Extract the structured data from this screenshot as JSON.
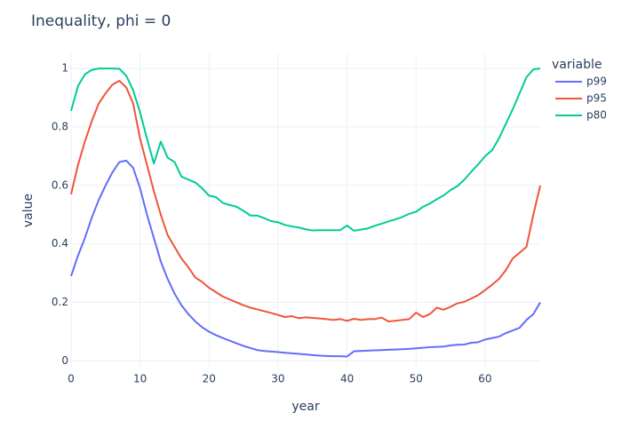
{
  "chart_data": {
    "type": "line",
    "title": "Inequality, phi = 0",
    "x_label": "year",
    "y_label": "value",
    "legend_title": "variable",
    "x": [
      0,
      1,
      2,
      3,
      4,
      5,
      6,
      7,
      8,
      9,
      10,
      11,
      12,
      13,
      14,
      15,
      16,
      17,
      18,
      19,
      20,
      21,
      22,
      23,
      24,
      25,
      26,
      27,
      28,
      29,
      30,
      31,
      32,
      33,
      34,
      35,
      36,
      37,
      38,
      39,
      40,
      41,
      42,
      43,
      44,
      45,
      46,
      47,
      48,
      49,
      50,
      51,
      52,
      53,
      54,
      55,
      56,
      57,
      58,
      59,
      60,
      61,
      62,
      63,
      64,
      65,
      66,
      67,
      68
    ],
    "series": [
      {
        "name": "p99",
        "color": "#636efa",
        "values": [
          0.29,
          0.36,
          0.42,
          0.49,
          0.55,
          0.6,
          0.645,
          0.68,
          0.685,
          0.66,
          0.59,
          0.5,
          0.42,
          0.34,
          0.28,
          0.23,
          0.19,
          0.16,
          0.135,
          0.115,
          0.1,
          0.088,
          0.078,
          0.069,
          0.06,
          0.051,
          0.044,
          0.037,
          0.034,
          0.032,
          0.03,
          0.028,
          0.026,
          0.024,
          0.022,
          0.02,
          0.018,
          0.017,
          0.016,
          0.016,
          0.015,
          0.033,
          0.034,
          0.035,
          0.036,
          0.037,
          0.038,
          0.039,
          0.04,
          0.041,
          0.043,
          0.045,
          0.047,
          0.048,
          0.049,
          0.053,
          0.055,
          0.056,
          0.062,
          0.064,
          0.073,
          0.078,
          0.083,
          0.095,
          0.104,
          0.113,
          0.14,
          0.16,
          0.2
        ]
      },
      {
        "name": "p95",
        "color": "#EF553B",
        "values": [
          0.57,
          0.67,
          0.75,
          0.82,
          0.88,
          0.915,
          0.945,
          0.958,
          0.935,
          0.88,
          0.76,
          0.67,
          0.58,
          0.5,
          0.43,
          0.39,
          0.35,
          0.32,
          0.285,
          0.27,
          0.25,
          0.235,
          0.22,
          0.21,
          0.2,
          0.19,
          0.182,
          0.176,
          0.17,
          0.164,
          0.157,
          0.15,
          0.153,
          0.146,
          0.149,
          0.147,
          0.145,
          0.143,
          0.14,
          0.143,
          0.137,
          0.144,
          0.14,
          0.143,
          0.143,
          0.148,
          0.135,
          0.137,
          0.14,
          0.143,
          0.165,
          0.15,
          0.16,
          0.182,
          0.175,
          0.185,
          0.197,
          0.202,
          0.213,
          0.225,
          0.242,
          0.26,
          0.28,
          0.31,
          0.35,
          0.37,
          0.39,
          0.5,
          0.6
        ]
      },
      {
        "name": "p80",
        "color": "#00cc96",
        "values": [
          0.855,
          0.94,
          0.98,
          0.995,
          1,
          1,
          1,
          0.999,
          0.975,
          0.925,
          0.85,
          0.76,
          0.675,
          0.75,
          0.695,
          0.68,
          0.63,
          0.62,
          0.61,
          0.59,
          0.565,
          0.56,
          0.54,
          0.533,
          0.527,
          0.513,
          0.497,
          0.497,
          0.488,
          0.478,
          0.474,
          0.465,
          0.46,
          0.456,
          0.45,
          0.446,
          0.447,
          0.447,
          0.447,
          0.447,
          0.463,
          0.445,
          0.449,
          0.453,
          0.462,
          0.469,
          0.477,
          0.484,
          0.492,
          0.503,
          0.51,
          0.527,
          0.538,
          0.553,
          0.566,
          0.584,
          0.598,
          0.62,
          0.647,
          0.672,
          0.7,
          0.72,
          0.76,
          0.81,
          0.86,
          0.915,
          0.97,
          0.997,
          1
        ]
      }
    ],
    "xlim": [
      0,
      68
    ],
    "xticks": [
      0,
      10,
      20,
      30,
      40,
      50,
      60
    ],
    "ylim": [
      -0.02,
      1.052
    ],
    "yticks": [
      0,
      0.2,
      0.4,
      0.6,
      0.8,
      1
    ],
    "grid": true
  }
}
